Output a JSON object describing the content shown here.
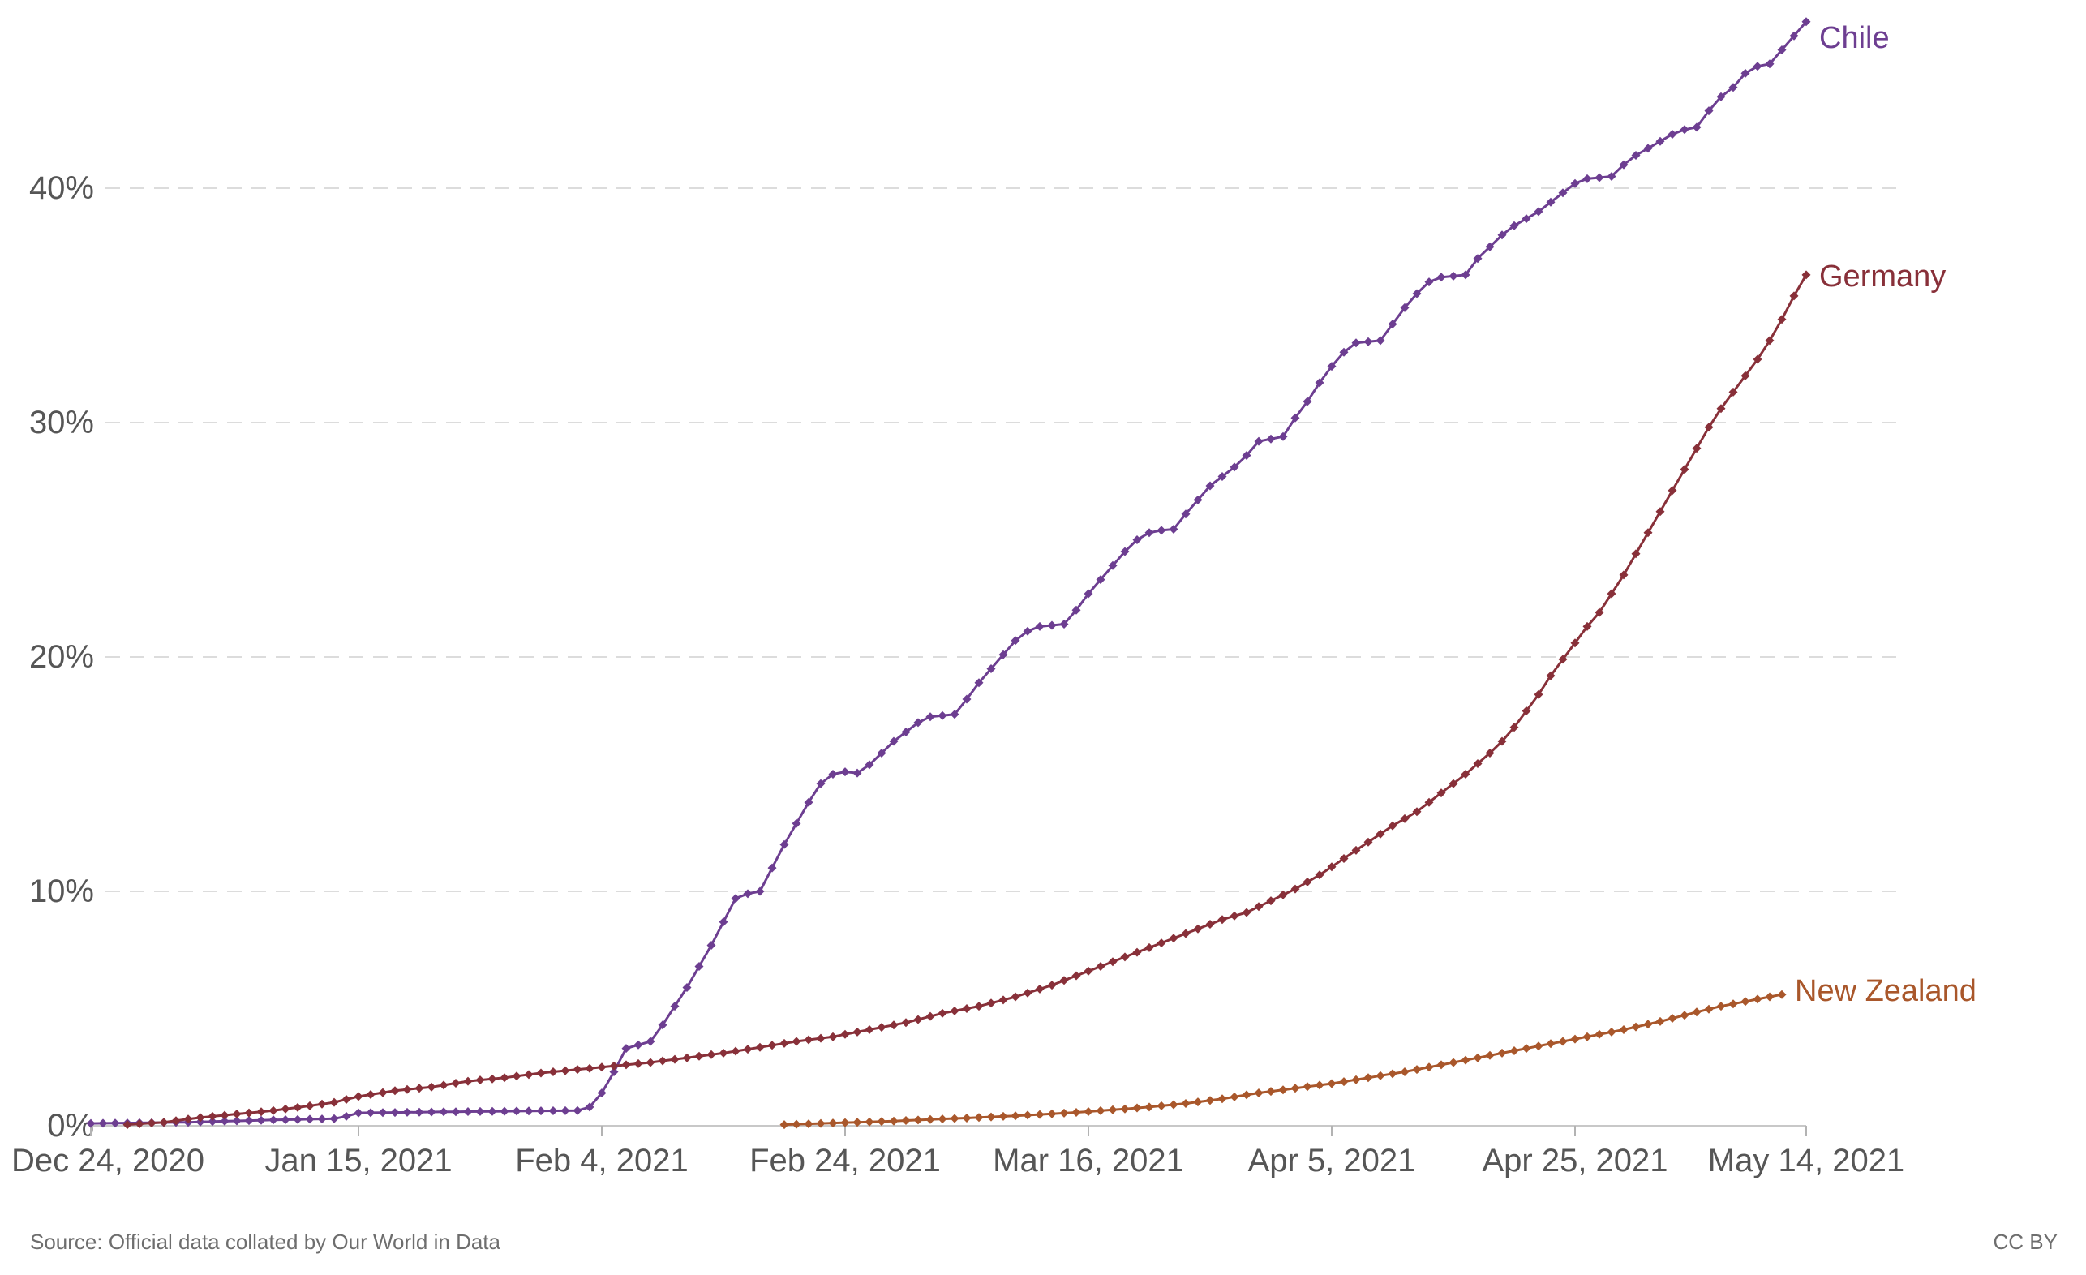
{
  "chart_data": {
    "type": "line",
    "title": "",
    "xlabel": "",
    "ylabel": "",
    "x_unit": "days since Dec 24, 2020",
    "y_unit": "percent",
    "ylim": [
      0,
      47.5
    ],
    "grid": "horizontal-dashed",
    "legend_position": "end-of-line-labels",
    "marker": "diamond-daily",
    "y_ticks": {
      "values": [
        0,
        10,
        20,
        30,
        40
      ],
      "labels": [
        "0%",
        "10%",
        "20%",
        "30%",
        "40%"
      ]
    },
    "x_ticks": {
      "days": [
        0,
        22,
        42,
        62,
        82,
        102,
        122,
        141
      ],
      "labels": [
        "Dec 24, 2020",
        "Jan 15, 2021",
        "Feb 4, 2021",
        "Feb 24, 2021",
        "Mar 16, 2021",
        "Apr 5, 2021",
        "Apr 25, 2021",
        "May 14, 2021"
      ]
    },
    "series": [
      {
        "name": "Chile",
        "color": "#6d3e91",
        "points_day_value": [
          [
            0,
            0.1
          ],
          [
            8,
            0.15
          ],
          [
            15,
            0.25
          ],
          [
            20,
            0.3
          ],
          [
            21,
            0.4
          ],
          [
            22,
            0.55
          ],
          [
            30,
            0.6
          ],
          [
            40,
            0.65
          ],
          [
            41,
            0.8
          ],
          [
            42,
            1.4
          ],
          [
            43,
            2.3
          ],
          [
            44,
            3.3
          ],
          [
            45,
            3.45
          ],
          [
            46,
            3.6
          ],
          [
            47,
            4.3
          ],
          [
            48,
            5.1
          ],
          [
            49,
            5.9
          ],
          [
            50,
            6.8
          ],
          [
            51,
            7.7
          ],
          [
            52,
            8.7
          ],
          [
            53,
            9.7
          ],
          [
            54,
            9.9
          ],
          [
            55,
            10.0
          ],
          [
            56,
            11.0
          ],
          [
            57,
            12.0
          ],
          [
            58,
            12.9
          ],
          [
            59,
            13.8
          ],
          [
            60,
            14.6
          ],
          [
            61,
            15.0
          ],
          [
            62,
            15.1
          ],
          [
            63,
            15.05
          ],
          [
            64,
            15.4
          ],
          [
            65,
            15.9
          ],
          [
            66,
            16.4
          ],
          [
            67,
            16.8
          ],
          [
            68,
            17.2
          ],
          [
            69,
            17.45
          ],
          [
            70,
            17.5
          ],
          [
            71,
            17.55
          ],
          [
            72,
            18.2
          ],
          [
            73,
            18.9
          ],
          [
            74,
            19.5
          ],
          [
            75,
            20.1
          ],
          [
            76,
            20.7
          ],
          [
            77,
            21.1
          ],
          [
            78,
            21.3
          ],
          [
            79,
            21.35
          ],
          [
            80,
            21.4
          ],
          [
            81,
            22.0
          ],
          [
            82,
            22.7
          ],
          [
            83,
            23.3
          ],
          [
            84,
            23.9
          ],
          [
            85,
            24.5
          ],
          [
            86,
            25.0
          ],
          [
            87,
            25.3
          ],
          [
            88,
            25.4
          ],
          [
            89,
            25.45
          ],
          [
            90,
            26.1
          ],
          [
            91,
            26.7
          ],
          [
            92,
            27.3
          ],
          [
            93,
            27.7
          ],
          [
            94,
            28.1
          ],
          [
            95,
            28.6
          ],
          [
            96,
            29.2
          ],
          [
            97,
            29.3
          ],
          [
            98,
            29.4
          ],
          [
            99,
            30.2
          ],
          [
            100,
            30.9
          ],
          [
            101,
            31.7
          ],
          [
            102,
            32.4
          ],
          [
            103,
            33.0
          ],
          [
            104,
            33.4
          ],
          [
            105,
            33.45
          ],
          [
            106,
            33.5
          ],
          [
            107,
            34.2
          ],
          [
            108,
            34.9
          ],
          [
            109,
            35.5
          ],
          [
            110,
            36.0
          ],
          [
            111,
            36.2
          ],
          [
            112,
            36.25
          ],
          [
            113,
            36.3
          ],
          [
            114,
            37.0
          ],
          [
            115,
            37.5
          ],
          [
            116,
            38.0
          ],
          [
            117,
            38.4
          ],
          [
            118,
            38.7
          ],
          [
            119,
            39.0
          ],
          [
            120,
            39.4
          ],
          [
            121,
            39.8
          ],
          [
            122,
            40.2
          ],
          [
            123,
            40.4
          ],
          [
            124,
            40.45
          ],
          [
            125,
            40.5
          ],
          [
            126,
            41.0
          ],
          [
            127,
            41.4
          ],
          [
            128,
            41.7
          ],
          [
            129,
            42.0
          ],
          [
            130,
            42.3
          ],
          [
            131,
            42.5
          ],
          [
            132,
            42.6
          ],
          [
            133,
            43.3
          ],
          [
            134,
            43.9
          ],
          [
            135,
            44.3
          ],
          [
            136,
            44.9
          ],
          [
            137,
            45.2
          ],
          [
            138,
            45.3
          ],
          [
            139,
            45.9
          ],
          [
            140,
            46.5
          ],
          [
            141,
            47.1
          ]
        ]
      },
      {
        "name": "Germany",
        "color": "#883039",
        "points_day_value": [
          [
            3,
            0.05
          ],
          [
            6,
            0.15
          ],
          [
            9,
            0.35
          ],
          [
            12,
            0.5
          ],
          [
            15,
            0.65
          ],
          [
            18,
            0.85
          ],
          [
            20,
            1.0
          ],
          [
            22,
            1.25
          ],
          [
            25,
            1.5
          ],
          [
            28,
            1.65
          ],
          [
            31,
            1.9
          ],
          [
            34,
            2.05
          ],
          [
            37,
            2.25
          ],
          [
            40,
            2.4
          ],
          [
            43,
            2.55
          ],
          [
            46,
            2.7
          ],
          [
            49,
            2.9
          ],
          [
            52,
            3.1
          ],
          [
            55,
            3.35
          ],
          [
            58,
            3.6
          ],
          [
            61,
            3.8
          ],
          [
            64,
            4.1
          ],
          [
            67,
            4.4
          ],
          [
            70,
            4.8
          ],
          [
            73,
            5.1
          ],
          [
            76,
            5.5
          ],
          [
            79,
            6.0
          ],
          [
            82,
            6.6
          ],
          [
            85,
            7.2
          ],
          [
            88,
            7.8
          ],
          [
            91,
            8.4
          ],
          [
            93,
            8.8
          ],
          [
            95,
            9.1
          ],
          [
            97,
            9.6
          ],
          [
            99,
            10.1
          ],
          [
            101,
            10.7
          ],
          [
            103,
            11.4
          ],
          [
            105,
            12.1
          ],
          [
            107,
            12.8
          ],
          [
            109,
            13.4
          ],
          [
            111,
            14.2
          ],
          [
            113,
            15.0
          ],
          [
            115,
            15.9
          ],
          [
            116,
            16.4
          ],
          [
            117,
            17.0
          ],
          [
            118,
            17.7
          ],
          [
            119,
            18.4
          ],
          [
            120,
            19.2
          ],
          [
            121,
            19.9
          ],
          [
            122,
            20.6
          ],
          [
            123,
            21.3
          ],
          [
            124,
            21.9
          ],
          [
            125,
            22.7
          ],
          [
            126,
            23.5
          ],
          [
            127,
            24.4
          ],
          [
            128,
            25.3
          ],
          [
            129,
            26.2
          ],
          [
            130,
            27.1
          ],
          [
            131,
            28.0
          ],
          [
            132,
            28.9
          ],
          [
            133,
            29.8
          ],
          [
            134,
            30.6
          ],
          [
            135,
            31.3
          ],
          [
            136,
            32.0
          ],
          [
            137,
            32.7
          ],
          [
            138,
            33.5
          ],
          [
            139,
            34.4
          ],
          [
            140,
            35.4
          ],
          [
            141,
            36.3
          ]
        ]
      },
      {
        "name": "New Zealand",
        "color": "#a9572b",
        "points_day_value": [
          [
            57,
            0.05
          ],
          [
            60,
            0.1
          ],
          [
            63,
            0.15
          ],
          [
            66,
            0.2
          ],
          [
            69,
            0.27
          ],
          [
            72,
            0.33
          ],
          [
            75,
            0.4
          ],
          [
            78,
            0.48
          ],
          [
            81,
            0.57
          ],
          [
            84,
            0.68
          ],
          [
            87,
            0.8
          ],
          [
            90,
            0.95
          ],
          [
            93,
            1.15
          ],
          [
            96,
            1.4
          ],
          [
            99,
            1.6
          ],
          [
            102,
            1.8
          ],
          [
            105,
            2.05
          ],
          [
            108,
            2.3
          ],
          [
            111,
            2.6
          ],
          [
            114,
            2.9
          ],
          [
            117,
            3.2
          ],
          [
            120,
            3.5
          ],
          [
            123,
            3.8
          ],
          [
            126,
            4.1
          ],
          [
            129,
            4.45
          ],
          [
            132,
            4.85
          ],
          [
            134,
            5.1
          ],
          [
            136,
            5.3
          ],
          [
            138,
            5.5
          ],
          [
            139,
            5.6
          ]
        ]
      }
    ]
  },
  "footer": {
    "source": "Source: Official data collated by Our World in Data",
    "license": "CC BY"
  }
}
